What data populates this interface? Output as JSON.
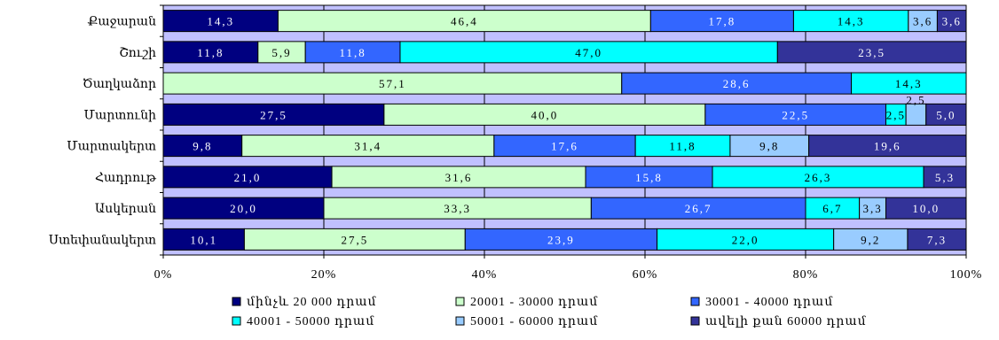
{
  "chart_data": {
    "type": "bar",
    "orientation": "horizontal",
    "stacked": "percent",
    "categories": [
      "Քաջարան",
      "Շուշի",
      "Ծաղկաձոր",
      "Մարտունի",
      "Մարտակերտ",
      "Հադրութ",
      "Ասկերան",
      "Ստեփանակերտ"
    ],
    "series": [
      {
        "name": "մինչև 20 000 դրամ",
        "color": "#000080",
        "values": [
          14.3,
          11.8,
          0,
          27.5,
          9.8,
          21.0,
          20.0,
          10.1
        ],
        "labels": [
          "14,3",
          "11,8",
          "0",
          "27,5",
          "9,8",
          "21,0",
          "20,0",
          "10,1"
        ]
      },
      {
        "name": "20001 - 30000 դրամ",
        "color": "#ccffcc",
        "values": [
          46.4,
          5.9,
          57.1,
          40.0,
          31.4,
          31.6,
          33.3,
          27.5
        ],
        "labels": [
          "46,4",
          "5,9",
          "57,1",
          "40,0",
          "31,4",
          "31,6",
          "33,3",
          "27,5"
        ]
      },
      {
        "name": "30001 - 40000 դրամ",
        "color": "#3366ff",
        "values": [
          17.8,
          11.8,
          28.6,
          22.5,
          17.6,
          15.8,
          26.7,
          23.9
        ],
        "labels": [
          "17,8",
          "11,8",
          "28,6",
          "22,5",
          "17,6",
          "15,8",
          "26,7",
          "23,9"
        ]
      },
      {
        "name": "40001 - 50000 դրամ",
        "color": "#00ffff",
        "values": [
          14.3,
          47.0,
          14.3,
          2.5,
          11.8,
          26.3,
          6.7,
          22.0
        ],
        "labels": [
          "14,3",
          "47,0",
          "14,3",
          "2,5",
          "11,8",
          "26,3",
          "6,7",
          "22,0"
        ]
      },
      {
        "name": "50001 - 60000 դրամ",
        "color": "#99ccff",
        "values": [
          3.6,
          0,
          0,
          2.5,
          9.8,
          0,
          3.3,
          9.2
        ],
        "labels": [
          "3,6",
          "",
          "",
          "2,5",
          "9,8",
          "",
          "3,3",
          "9,2"
        ]
      },
      {
        "name": "ավելի քան 60000 դրամ",
        "color": "#333399",
        "values": [
          3.6,
          23.5,
          0,
          5.0,
          19.6,
          5.3,
          10.0,
          7.3
        ],
        "labels": [
          "3,6",
          "23,5",
          "",
          "5,0",
          "19,6",
          "5,3",
          "10,0",
          "7,3"
        ]
      }
    ],
    "xlim": [
      0,
      100
    ],
    "x_ticks": [
      "0%",
      "20%",
      "40%",
      "60%",
      "80%",
      "100%"
    ],
    "grid": true,
    "legend_position": "bottom",
    "plot_background": "#c0c0ff"
  }
}
